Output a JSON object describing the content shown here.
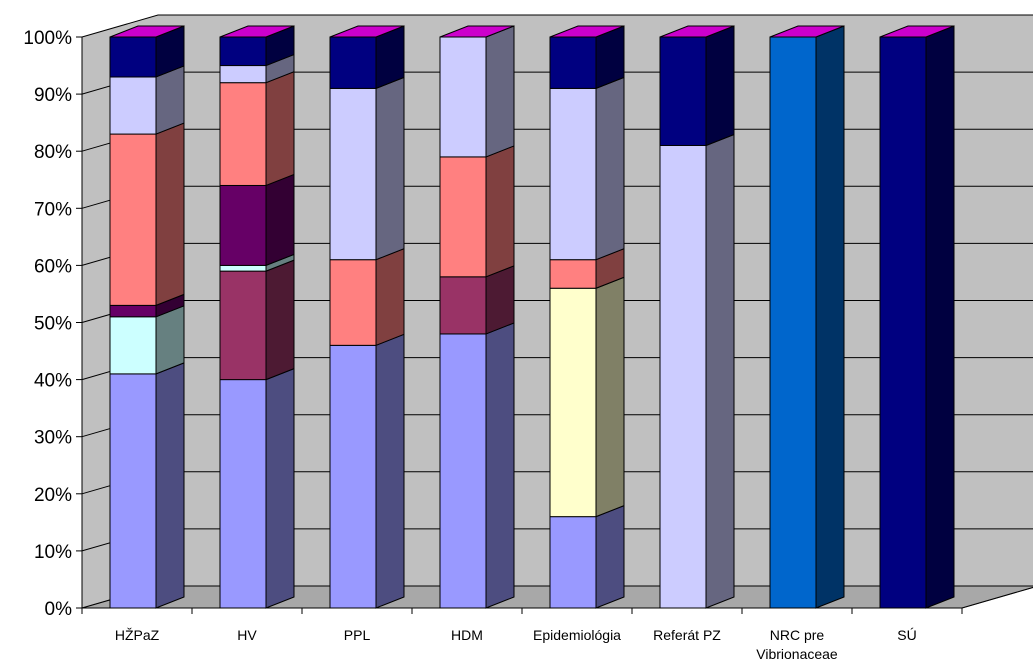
{
  "chart_data": {
    "type": "bar",
    "stacked": true,
    "three_d": true,
    "percent_stacked": true,
    "title": "",
    "xlabel": "",
    "ylabel": "",
    "ylim": [
      0,
      100
    ],
    "y_ticks": [
      "0%",
      "10%",
      "20%",
      "30%",
      "40%",
      "50%",
      "60%",
      "70%",
      "80%",
      "90%",
      "100%"
    ],
    "grid": true,
    "legend": "none",
    "categories": [
      "HŽPaZ",
      "HV",
      "PPL",
      "HDM",
      "Epidemiológia",
      "Referát PZ",
      "NRC pre Vibrionaceae",
      "SÚ"
    ],
    "category_labels": [
      [
        "HŽPaZ"
      ],
      [
        "HV"
      ],
      [
        "PPL"
      ],
      [
        "HDM"
      ],
      [
        "Epidemiológia"
      ],
      [
        "Referát PZ"
      ],
      [
        "NRC pre",
        "Vibrionaceae"
      ],
      [
        "SÚ"
      ]
    ],
    "series": [
      {
        "color": "#9999FF",
        "values": [
          41,
          40,
          46,
          48,
          16,
          0,
          0,
          0
        ]
      },
      {
        "color": "#FFFFCC",
        "values": [
          0,
          0,
          0,
          0,
          40,
          0,
          0,
          0
        ]
      },
      {
        "color": "#993366",
        "values": [
          0,
          19,
          0,
          10,
          0,
          0,
          0,
          0
        ]
      },
      {
        "color": "#CCFFFF",
        "values": [
          10,
          1,
          0,
          0,
          0,
          0,
          0,
          0
        ]
      },
      {
        "color": "#660066",
        "values": [
          2,
          14,
          0,
          0,
          0,
          0,
          0,
          0
        ]
      },
      {
        "color": "#FF8080",
        "values": [
          30,
          18,
          15,
          21,
          5,
          0,
          0,
          0
        ]
      },
      {
        "color": "#CCCCFF",
        "values": [
          10,
          3,
          30,
          21,
          30,
          81,
          0,
          0
        ]
      },
      {
        "color": "#0066CC",
        "values": [
          0,
          0,
          0,
          0,
          0,
          0,
          100,
          0
        ]
      },
      {
        "color": "#000080",
        "values": [
          7,
          5,
          9,
          0,
          9,
          19,
          0,
          100
        ]
      }
    ],
    "top_color": "#CC00CC",
    "wall_color": "#C0C0C0"
  }
}
